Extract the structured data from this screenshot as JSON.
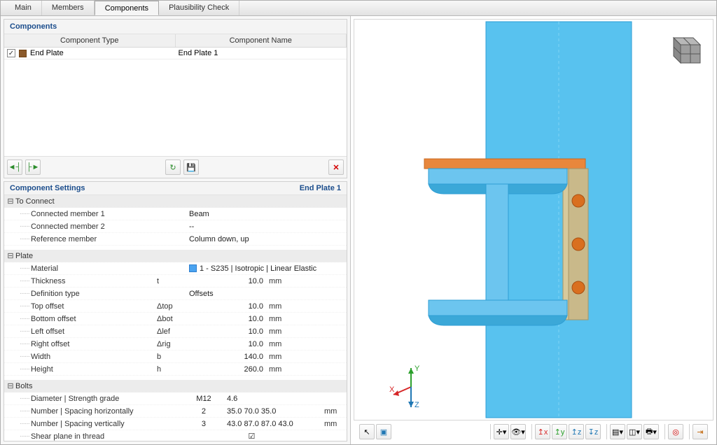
{
  "tabs": [
    "Main",
    "Members",
    "Components",
    "Plausibility Check"
  ],
  "active_tab": 2,
  "components_panel": {
    "title": "Components",
    "columns": [
      "Component Type",
      "Component Name"
    ],
    "rows": [
      {
        "checked": true,
        "swatch": "#8b5a2b",
        "type": "End Plate",
        "name": "End Plate 1"
      }
    ],
    "toolbar_icons": [
      "add-left",
      "add-right",
      "refresh",
      "save",
      "delete"
    ]
  },
  "settings_panel": {
    "title": "Component Settings",
    "subtitle": "End Plate 1",
    "groups": [
      {
        "name": "To Connect",
        "rows": [
          {
            "label": "Connected member 1",
            "sym": "",
            "val": "Beam",
            "unit": "",
            "align": "left"
          },
          {
            "label": "Connected member 2",
            "sym": "",
            "val": "--",
            "unit": "",
            "align": "left"
          },
          {
            "label": "Reference member",
            "sym": "",
            "val": "Column down, up",
            "unit": "",
            "align": "left"
          }
        ]
      },
      {
        "name": "Plate",
        "rows": [
          {
            "label": "Material",
            "sym": "",
            "val": "1 - S235 | Isotropic | Linear Elastic",
            "unit": "",
            "align": "left",
            "swatch": "#4aa3f0"
          },
          {
            "label": "Thickness",
            "sym": "t",
            "val": "10.0",
            "unit": "mm"
          },
          {
            "label": "Definition type",
            "sym": "",
            "val": "Offsets",
            "unit": "",
            "align": "left"
          },
          {
            "label": "Top offset",
            "sym": "Δtop",
            "val": "10.0",
            "unit": "mm"
          },
          {
            "label": "Bottom offset",
            "sym": "Δbot",
            "val": "10.0",
            "unit": "mm"
          },
          {
            "label": "Left offset",
            "sym": "Δlef",
            "val": "10.0",
            "unit": "mm"
          },
          {
            "label": "Right offset",
            "sym": "Δrig",
            "val": "10.0",
            "unit": "mm"
          },
          {
            "label": "Width",
            "sym": "b",
            "val": "140.0",
            "unit": "mm"
          },
          {
            "label": "Height",
            "sym": "h",
            "val": "260.0",
            "unit": "mm"
          }
        ]
      },
      {
        "name": "Bolts",
        "rows": [
          {
            "label": "Diameter | Strength grade",
            "sym": "",
            "val": "M12",
            "unit": "",
            "extra": "4.6"
          },
          {
            "label": "Number | Spacing horizontally",
            "sym": "",
            "val": "2",
            "unit": "mm",
            "extra": "35.0 70.0 35.0"
          },
          {
            "label": "Number | Spacing vertically",
            "sym": "",
            "val": "3",
            "unit": "mm",
            "extra": "43.0 87.0 87.0 43.0"
          },
          {
            "label": "Shear plane in thread",
            "sym": "",
            "val": "☑",
            "unit": "",
            "align": "center"
          }
        ]
      }
    ]
  },
  "view3d": {
    "colors": {
      "column": "#58c2ef",
      "column_edge": "#2e9ed4",
      "beam": "#6cc5ef",
      "beam_edge": "#2e9ed4",
      "beam_shadow": "#3ba8d8",
      "plate": "#c9b98a",
      "plate_edge": "#a59566",
      "cap": "#e8873c",
      "cap_edge": "#c96a20",
      "bolt": "#d96f1f"
    },
    "axes": {
      "x": "#d62728",
      "y": "#2ca02c",
      "z": "#1f77b4"
    },
    "cube_colors": {
      "top": "#b8b8b8",
      "front": "#9e9e9e",
      "side": "#8a8a8a",
      "line": "#555"
    }
  },
  "toolbar3d": {
    "groups": [
      [
        "cursor-icon",
        "select-window-icon"
      ],
      [
        "axis-arrow-icon",
        "menu-dd"
      ],
      [
        "eye-view-icon",
        "menu-dd"
      ],
      [
        "axis-xy",
        "axis-yz",
        "axis-xz",
        "axis-z"
      ],
      [
        "layers",
        "menu-dd",
        "cube",
        "menu-dd",
        "print",
        "menu-dd"
      ],
      [
        "target-red"
      ],
      [
        "exit-icon"
      ]
    ]
  }
}
